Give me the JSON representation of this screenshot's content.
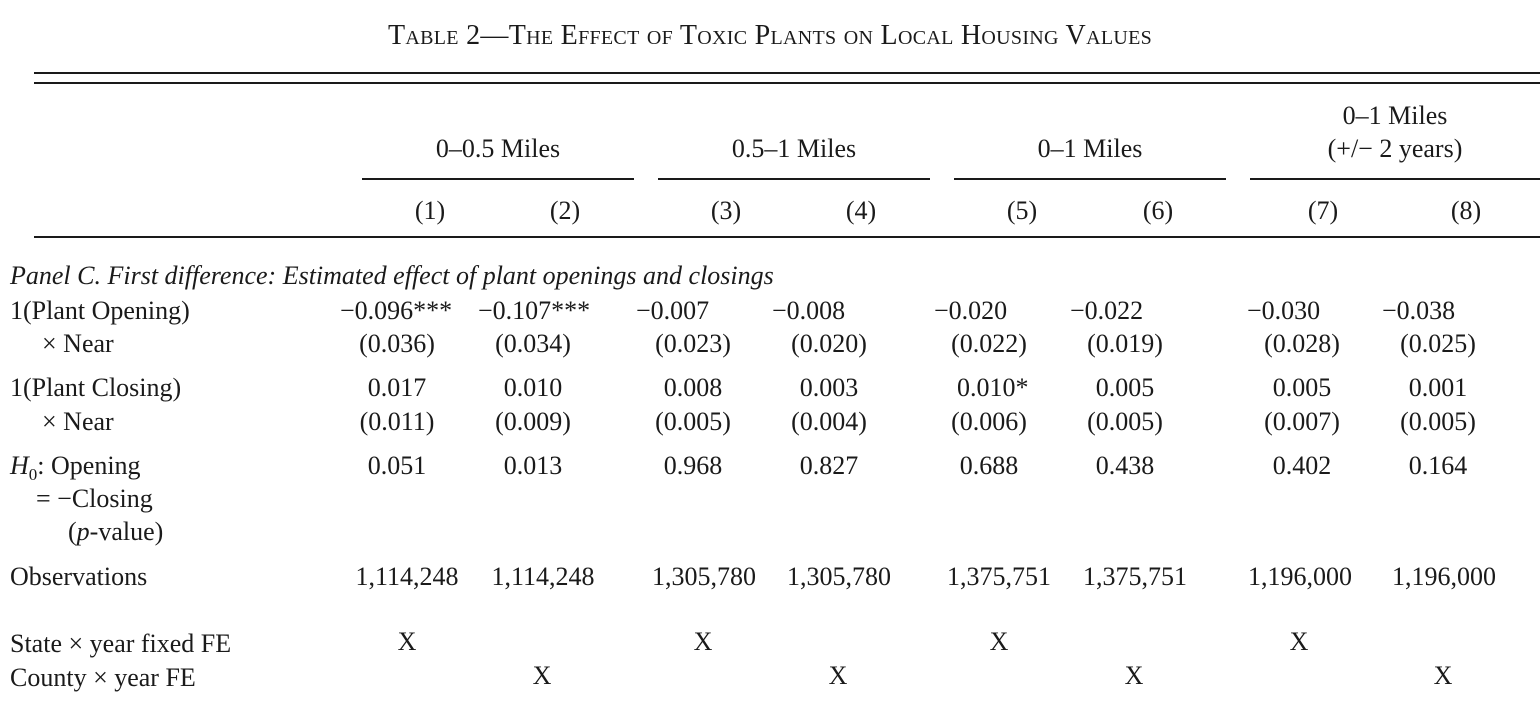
{
  "title": {
    "prefix": "Table 2",
    "dash": "—",
    "text": "The Effect of Toxic Plants on Local Housing Values"
  },
  "groups": [
    {
      "label": "0–0.5 Miles"
    },
    {
      "label": "0.5–1 Miles"
    },
    {
      "label": "0–1 Miles"
    },
    {
      "label_line1": "0–1 Miles",
      "label_line2": "(+/− 2 years)"
    }
  ],
  "columns": [
    "(1)",
    "(2)",
    "(3)",
    "(4)",
    "(5)",
    "(6)",
    "(7)",
    "(8)"
  ],
  "panel_label": "Panel C. First difference: Estimated effect of plant openings and closings",
  "rows": {
    "opening": {
      "label1": "1(Plant Opening)",
      "label2": "× Near",
      "coef": [
        "−0.096***",
        "−0.107***",
        "−0.007",
        "−0.008",
        "−0.020",
        "−0.022",
        "−0.030",
        "−0.038"
      ],
      "se": [
        "(0.036)",
        "(0.034)",
        "(0.023)",
        "(0.020)",
        "(0.022)",
        "(0.019)",
        "(0.028)",
        "(0.025)"
      ]
    },
    "closing": {
      "label1": "1(Plant Closing)",
      "label2": "× Near",
      "coef": [
        "0.017",
        "0.010",
        "0.008",
        "0.003",
        "0.010*",
        "0.005",
        "0.005",
        "0.001"
      ],
      "se": [
        "(0.011)",
        "(0.009)",
        "(0.005)",
        "(0.004)",
        "(0.006)",
        "(0.005)",
        "(0.007)",
        "(0.005)"
      ]
    },
    "h0": {
      "label_h": "H",
      "label_sub": "0",
      "label1_rest": ": Opening",
      "label2": "= −Closing",
      "label3_open": "(",
      "label3_p": "p",
      "label3_rest": "-value)",
      "values": [
        "0.051",
        "0.013",
        "0.968",
        "0.827",
        "0.688",
        "0.438",
        "0.402",
        "0.164"
      ]
    },
    "obs": {
      "label": "Observations",
      "values": [
        "1,114,248",
        "1,114,248",
        "1,305,780",
        "1,305,780",
        "1,375,751",
        "1,375,751",
        "1,196,000",
        "1,196,000"
      ]
    },
    "state_fe": {
      "label": "State × year fixed FE",
      "values": [
        "X",
        "",
        "X",
        "",
        "X",
        "",
        "X",
        ""
      ]
    },
    "county_fe": {
      "label": "County × year FE",
      "values": [
        "",
        "X",
        "",
        "X",
        "",
        "X",
        "",
        "X"
      ]
    }
  }
}
